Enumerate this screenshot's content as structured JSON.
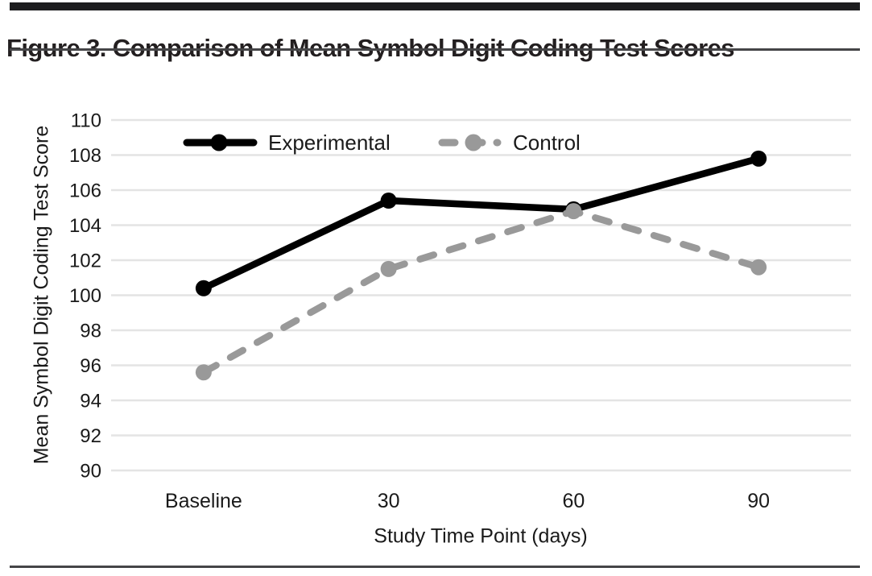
{
  "page": {
    "title": "Figure 3. Comparison of Mean Symbol Digit Coding Test Scores"
  },
  "chart_data": {
    "type": "line",
    "title": "Figure 3. Comparison of Mean Symbol Digit Coding Test Scores",
    "categories": [
      "Baseline",
      "30",
      "60",
      "90"
    ],
    "series": [
      {
        "name": "Experimental",
        "values": [
          100.4,
          105.4,
          104.9,
          107.8
        ],
        "color": "#000000",
        "style": "solid"
      },
      {
        "name": "Control",
        "values": [
          95.6,
          101.5,
          104.8,
          101.6
        ],
        "color": "#999999",
        "style": "dashed"
      }
    ],
    "xlabel": "Study Time Point (days)",
    "ylabel": "Mean Symbol Digit Coding Test Score",
    "ylim": [
      90,
      110
    ],
    "ytick_step": 2,
    "yticks": [
      90,
      92,
      94,
      96,
      98,
      100,
      102,
      104,
      106,
      108,
      110
    ],
    "grid": "horizontal-only",
    "legend_position": "inside-top",
    "legend": [
      "Experimental",
      "Control"
    ]
  },
  "colors": {
    "experimental": "#000000",
    "control": "#999999",
    "gridline": "#e4e4e4",
    "text": "#1a1a1a",
    "rule": "#454547",
    "top_bar": "#1d1d1f"
  }
}
